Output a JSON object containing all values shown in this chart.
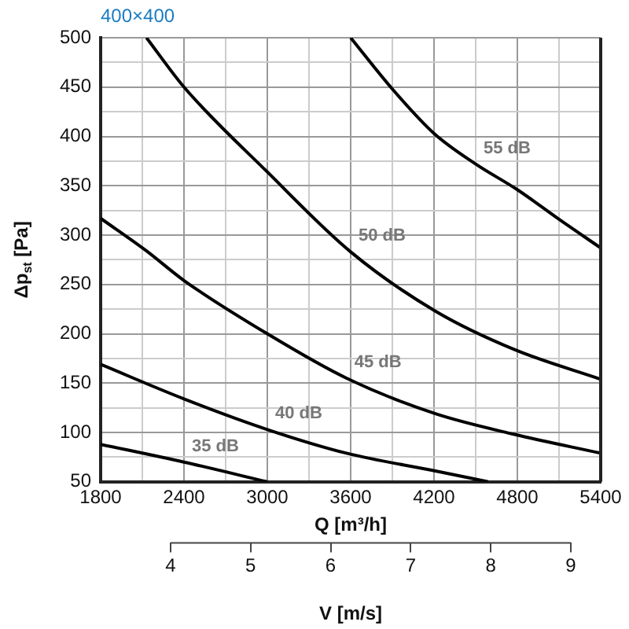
{
  "chart_data": {
    "type": "line",
    "title": "400×400",
    "xlabel": "Q [m³/h]",
    "ylabel": "Δp$_{st}$ [Pa]",
    "x2label": "V [m/s]",
    "xlim": [
      1800,
      5400
    ],
    "xticks": [
      1800,
      {
        "value": 2100,
        "label": null
      },
      2400,
      {
        "value": 2700,
        "label": null
      },
      3000,
      {
        "value": 3300,
        "label": null
      },
      3600,
      {
        "value": 3900,
        "label": null
      },
      4200,
      {
        "value": 4500,
        "label": null
      },
      4800,
      {
        "value": 5100,
        "label": null
      },
      5400
    ],
    "ylim": [
      50,
      500
    ],
    "yticks": [
      50,
      {
        "value": 75,
        "label": null
      },
      100,
      {
        "value": 125,
        "label": null
      },
      150,
      {
        "value": 175,
        "label": null
      },
      200,
      {
        "value": 225,
        "label": null
      },
      250,
      {
        "value": 275,
        "label": null
      },
      300,
      {
        "value": 325,
        "label": null
      },
      350,
      {
        "value": 375,
        "label": null
      },
      400,
      {
        "value": 425,
        "label": null
      },
      450,
      {
        "value": 475,
        "label": null
      },
      500
    ],
    "x2lim": [
      3.125,
      9.375
    ],
    "x2ticks": [
      4,
      5,
      6,
      7,
      8,
      9
    ],
    "grid": true,
    "series": [
      {
        "name": "55 dB",
        "color": "#000000",
        "x": [
          3600,
          3900,
          4200,
          4500,
          4800,
          5100,
          5400
        ],
        "values": [
          500,
          448,
          403,
          372,
          346,
          316,
          287
        ]
      },
      {
        "name": "50 dB",
        "color": "#000000",
        "x": [
          2130,
          2400,
          3000,
          3600,
          4210,
          4780,
          5400
        ],
        "values": [
          500,
          450,
          364,
          283,
          223,
          184,
          154
        ]
      },
      {
        "name": "45 dB",
        "color": "#000000",
        "x": [
          1800,
          2130,
          2400,
          3000,
          3570,
          4210,
          4780,
          5400
        ],
        "values": [
          317,
          284,
          254,
          200,
          155,
          119,
          98,
          79
        ]
      },
      {
        "name": "40 dB",
        "color": "#000000",
        "x": [
          1800,
          2400,
          3000,
          3570,
          4210,
          4590
        ],
        "values": [
          169,
          134,
          103,
          79,
          61,
          50
        ]
      },
      {
        "name": "35 dB",
        "color": "#000000",
        "x": [
          1800,
          2400,
          3000
        ],
        "values": [
          88,
          70,
          50
        ]
      }
    ]
  }
}
